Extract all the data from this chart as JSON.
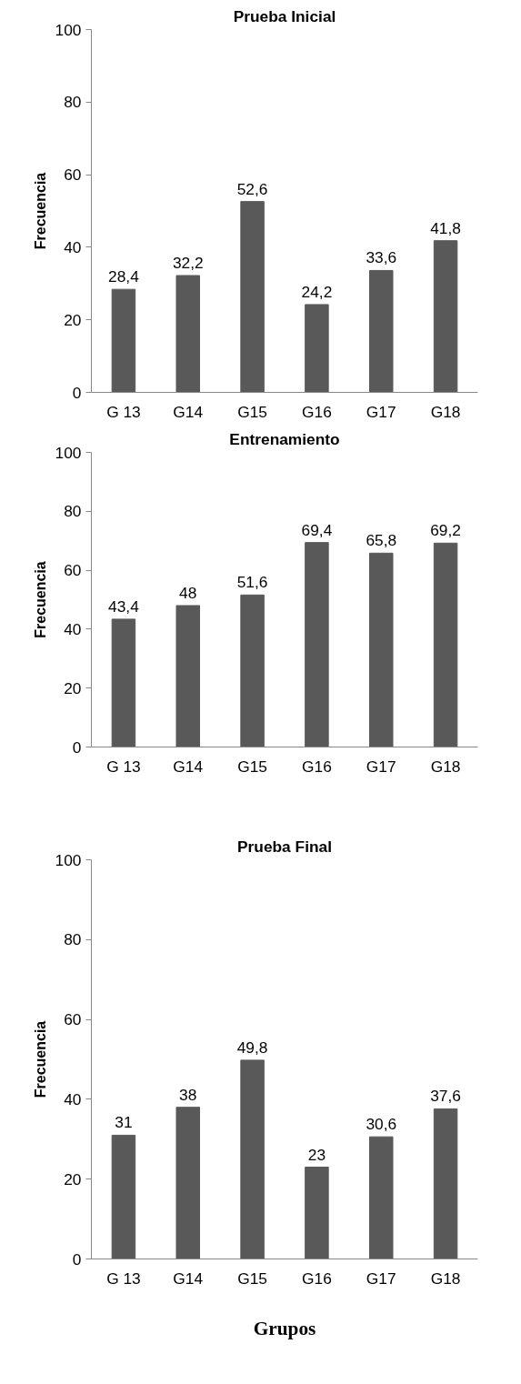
{
  "chart_data": [
    {
      "type": "bar",
      "title": "Prueba Inicial",
      "ylabel": "Frecuencia",
      "categories": [
        "G 13",
        "G14",
        "G15",
        "G16",
        "G17",
        "G18"
      ],
      "values": [
        28.4,
        32.2,
        52.6,
        24.2,
        33.6,
        41.8
      ],
      "value_labels": [
        "28,4",
        "32,2",
        "52,6",
        "24,2",
        "33,6",
        "41,8"
      ],
      "color": "#595959",
      "ylim": [
        0,
        100
      ],
      "yticks": [
        0,
        20,
        40,
        60,
        80,
        100
      ],
      "grid": false
    },
    {
      "type": "bar",
      "title": "Entrenamiento",
      "ylabel": "Frecuencia",
      "categories": [
        "G 13",
        "G14",
        "G15",
        "G16",
        "G17",
        "G18"
      ],
      "values": [
        43.4,
        48,
        51.6,
        69.4,
        65.8,
        69.2
      ],
      "value_labels": [
        "43,4",
        "48",
        "51,6",
        "69,4",
        "65,8",
        "69,2"
      ],
      "color": "#595959",
      "ylim": [
        0,
        100
      ],
      "yticks": [
        0,
        20,
        40,
        60,
        80,
        100
      ],
      "grid": false
    },
    {
      "type": "bar",
      "title": "Prueba Final",
      "ylabel": "Frecuencia",
      "xlabel": "Grupos",
      "categories": [
        "G 13",
        "G14",
        "G15",
        "G16",
        "G17",
        "G18"
      ],
      "values": [
        31,
        38,
        49.8,
        23,
        30.6,
        37.6
      ],
      "value_labels": [
        "31",
        "38",
        "49,8",
        "23",
        "30,6",
        "37,6"
      ],
      "color": "#595959",
      "ylim": [
        0,
        100
      ],
      "yticks": [
        0,
        20,
        40,
        60,
        80,
        100
      ],
      "grid": false
    }
  ]
}
